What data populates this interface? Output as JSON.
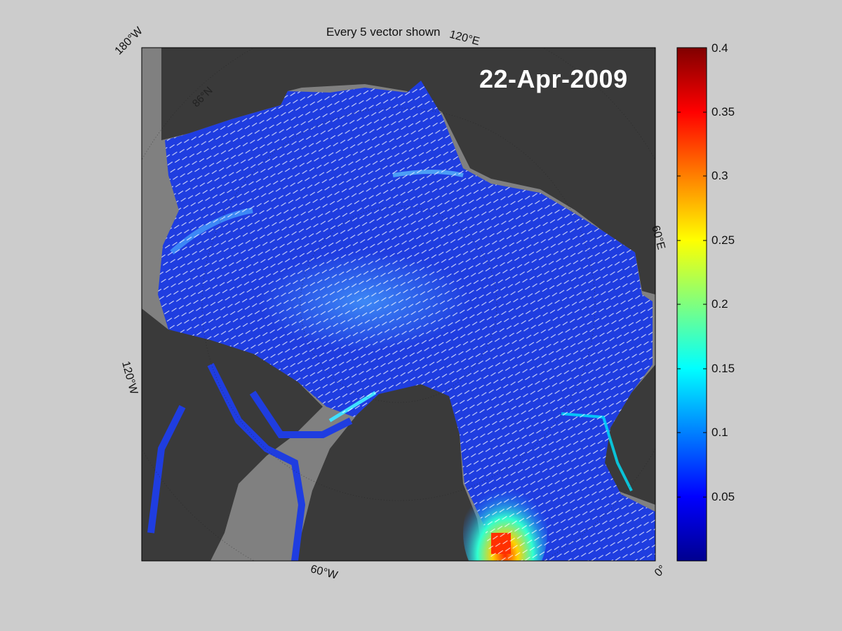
{
  "title": "Every 5 vector shown",
  "date_label": "22-Apr-2009",
  "lon_labels": {
    "w180": "180°W",
    "e120": "120°E",
    "e60": "60°E",
    "w120": "120°W",
    "w60": "60°W",
    "zero": "0°"
  },
  "lat_labels": {
    "n86": "86°N"
  },
  "colorbar": {
    "colormap": "jet",
    "min": 0,
    "max": 0.4,
    "ticks": [
      "0.05",
      "0.1",
      "0.15",
      "0.2",
      "0.25",
      "0.3",
      "0.35",
      "0.4"
    ]
  },
  "colors": {
    "background": "#cccccc",
    "land": "#3a3a3a",
    "land_outside_domain": "#808080",
    "ice_low": "#1f3de0",
    "vectors": "#ffffff"
  }
}
